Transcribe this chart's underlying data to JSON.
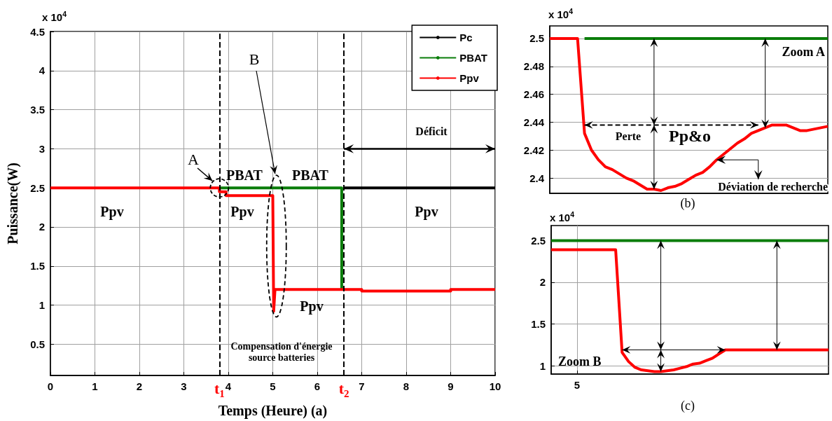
{
  "chart_data": [
    {
      "type": "line",
      "xlabel": "Temps (Heure) (a)",
      "ylabel": "Puissance(W)",
      "xlim": [
        0,
        10
      ],
      "xticks": [
        0,
        1,
        2,
        3,
        4,
        5,
        6,
        7,
        8,
        9,
        10
      ],
      "ylim": [
        0.1,
        4.5
      ],
      "yticks": [
        0.5,
        1,
        1.5,
        2,
        2.5,
        3,
        3.5,
        4,
        4.5
      ],
      "grid": true,
      "legend": "top right",
      "series": [
        {
          "name": "Pc",
          "color": "#000000",
          "x": [
            6.6,
            10
          ],
          "values": [
            2.5,
            2.5
          ]
        },
        {
          "name": "PBAT",
          "color": "#0a7d0a",
          "x": [
            3.8,
            6.55,
            6.55
          ],
          "values": [
            2.5,
            2.5,
            1.2
          ]
        },
        {
          "name": "Ppv",
          "color": "#ff0000",
          "x": [
            0,
            3.8,
            3.8,
            3.95,
            3.95,
            5.0,
            5.02,
            5.05,
            7,
            7,
            9,
            9,
            10
          ],
          "values": [
            2.5,
            2.5,
            2.45,
            2.45,
            2.4,
            2.4,
            0.92,
            1.2,
            1.2,
            1.18,
            1.18,
            1.2,
            1.2
          ]
        }
      ],
      "ref_lines": [
        {
          "axis": "x",
          "value": 3.8,
          "label": "t$_{1}$",
          "color": "#000000",
          "line_style": "dashed"
        },
        {
          "axis": "x",
          "value": 6.6,
          "label": "t$_{2}$",
          "color": "#000000",
          "line_style": "dashed"
        }
      ],
      "annotations": [
        "x 10$^{4}$",
        "A",
        "B",
        "PBAT",
        "PBAT",
        "Déficit",
        "Ppv",
        "Ppv",
        "Ppv",
        "Ppv",
        "Compensation d'énergie\nsource batteries"
      ]
    },
    {
      "type": "line",
      "categories": [
        null,
        null,
        null,
        null,
        null,
        null,
        null,
        null,
        null,
        null,
        null,
        null,
        null,
        null,
        null,
        null,
        null,
        null,
        null,
        null,
        null,
        null,
        null,
        null,
        null,
        null,
        null,
        null,
        null,
        null,
        null,
        null,
        null,
        null,
        null,
        null,
        null,
        null,
        null,
        null,
        null
      ],
      "ylim": [
        2.389,
        2.509
      ],
      "yticks": [
        2.4,
        2.42,
        2.44,
        2.46,
        2.48,
        2.5
      ],
      "grid": true,
      "tick_labels": "y",
      "series": [
        {
          "color": "#0a7d0a",
          "values": [
            null,
            null,
            null,
            null,
            null,
            2.5,
            2.5,
            2.5,
            2.5,
            2.5,
            2.5,
            2.5,
            2.5,
            2.5,
            2.5,
            2.5,
            2.5,
            2.5,
            2.5,
            2.5,
            2.5,
            2.5,
            2.5,
            2.5,
            2.5,
            2.5,
            2.5,
            2.5,
            2.5,
            2.5,
            2.5,
            2.5,
            2.5,
            2.5,
            2.5,
            2.5,
            2.5,
            2.5,
            2.5,
            2.5,
            2.5
          ]
        },
        {
          "color": "#ff0000",
          "values": [
            2.5,
            2.5,
            2.5,
            2.5,
            2.5,
            2.432,
            2.42,
            2.413,
            2.408,
            2.406,
            2.403,
            2.4,
            2.398,
            2.395,
            2.392,
            2.392,
            2.391,
            2.393,
            2.394,
            2.396,
            2.399,
            2.402,
            2.404,
            2.408,
            2.413,
            2.417,
            2.421,
            2.425,
            2.428,
            2.432,
            2.434,
            2.436,
            2.438,
            2.438,
            2.438,
            2.436,
            2.434,
            2.434,
            2.435,
            2.436,
            2.437
          ]
        }
      ],
      "annotations": [
        "x 10$^{4}$",
        "Zoom A",
        "Perte",
        "Pp&o",
        "Déviation de recherche",
        "(b)"
      ]
    },
    {
      "type": "line",
      "categories": [
        null,
        null,
        null,
        null,
        "5",
        null,
        null,
        null,
        null,
        null,
        null,
        null,
        null,
        null,
        null,
        null,
        null,
        null,
        null,
        null,
        null,
        null,
        null,
        null,
        null,
        null,
        null,
        null,
        null,
        null,
        null,
        null,
        null,
        null,
        null,
        null,
        null,
        null,
        null,
        null,
        null,
        null,
        null,
        null
      ],
      "ylim": [
        0.9,
        2.68
      ],
      "yticks": [
        1,
        1.5,
        2,
        2.5
      ],
      "grid": true,
      "series": [
        {
          "color": "#0a7d0a",
          "values": [
            2.5,
            2.5,
            2.5,
            2.5,
            2.5,
            2.5,
            2.5,
            2.5,
            2.5,
            2.5,
            2.5,
            2.5,
            2.5,
            2.5,
            2.5,
            2.5,
            2.5,
            2.5,
            2.5,
            2.5,
            2.5,
            2.5,
            2.5,
            2.5,
            2.5,
            2.5,
            2.5,
            2.5,
            2.5,
            2.5,
            2.5,
            2.5,
            2.5,
            2.5,
            2.5,
            2.5,
            2.5,
            2.5,
            2.5,
            2.5,
            2.5,
            2.5,
            2.5,
            2.5
          ]
        },
        {
          "color": "#ff0000",
          "values": [
            2.39,
            2.39,
            2.39,
            2.39,
            2.39,
            2.39,
            2.39,
            2.39,
            2.39,
            2.39,
            2.39,
            1.16,
            1.05,
            0.98,
            0.95,
            0.94,
            0.93,
            0.93,
            0.94,
            0.95,
            0.97,
            0.99,
            1.02,
            1.03,
            1.06,
            1.09,
            1.14,
            1.19,
            1.19,
            1.19,
            1.19,
            1.19,
            1.19,
            1.19,
            1.19,
            1.19,
            1.19,
            1.19,
            1.19,
            1.19,
            1.19,
            1.19,
            1.19,
            1.19
          ]
        }
      ],
      "annotations": [
        "x 10$^{4}$",
        "Zoom B",
        "(c)"
      ]
    }
  ]
}
